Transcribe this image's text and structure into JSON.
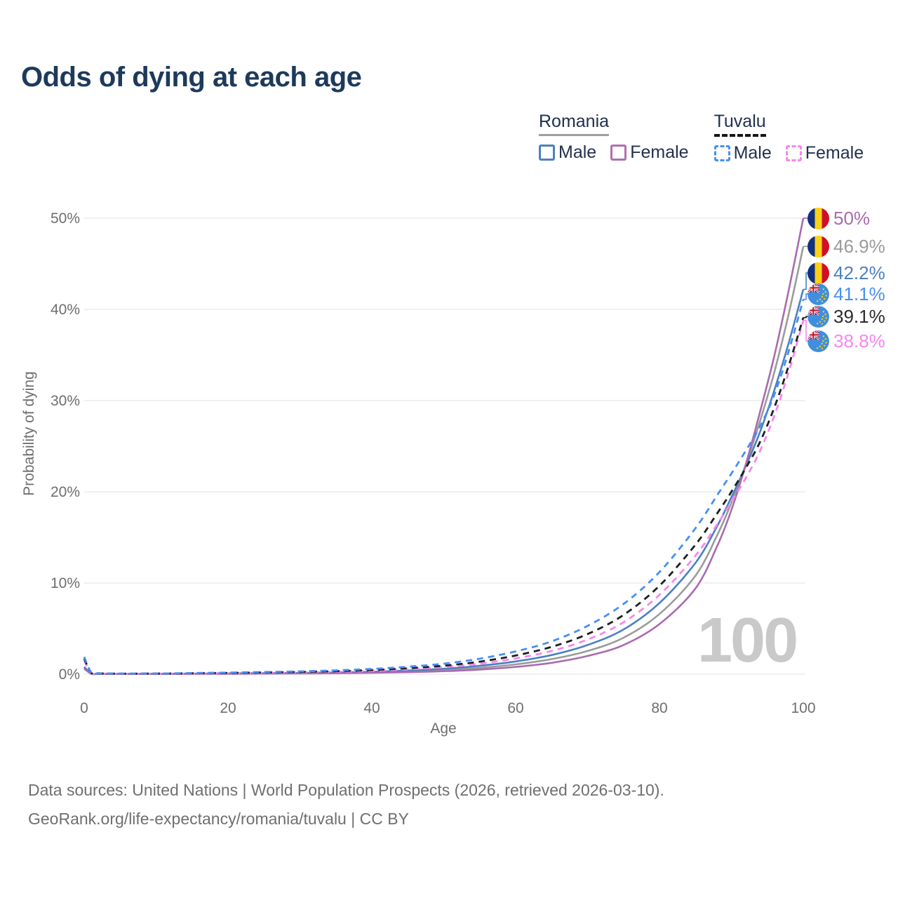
{
  "title": "Odds of dying at each age",
  "watermark": "100",
  "legend": {
    "groups": [
      {
        "name": "Romania",
        "line_style": "solid",
        "underline_color": "#9e9e9e",
        "items": [
          {
            "label": "Male",
            "color": "#4b80c2",
            "dash": false
          },
          {
            "label": "Female",
            "color": "#b06fb2",
            "dash": false
          }
        ]
      },
      {
        "name": "Tuvalu",
        "line_style": "dashed",
        "underline_color": "#161616",
        "items": [
          {
            "label": "Male",
            "color": "#478ff5",
            "dash": true
          },
          {
            "label": "Female",
            "color": "#f985ef",
            "dash": true
          }
        ]
      }
    ]
  },
  "chart_data": {
    "type": "line",
    "title": "Odds of dying at each age",
    "xlabel": "Age",
    "ylabel": "Probability of dying",
    "xlim": [
      0,
      100
    ],
    "ylim_percent": [
      0,
      50
    ],
    "x_ticks": [
      0,
      20,
      40,
      60,
      80,
      100
    ],
    "y_ticks": [
      {
        "value": 0,
        "label": "0%"
      },
      {
        "value": 10,
        "label": "10%"
      },
      {
        "value": 20,
        "label": "20%"
      },
      {
        "value": 30,
        "label": "30%"
      },
      {
        "value": 40,
        "label": "40%"
      },
      {
        "value": 50,
        "label": "50%"
      }
    ],
    "grid": "horizontal",
    "legend_position": "top-right",
    "ages": [
      0,
      1,
      2,
      5,
      10,
      15,
      20,
      25,
      30,
      35,
      40,
      45,
      50,
      55,
      60,
      65,
      70,
      75,
      80,
      85,
      88,
      90,
      92,
      94,
      96,
      98,
      100
    ],
    "series": [
      {
        "id": "romania-female",
        "name": "Romania Female",
        "country": "romania",
        "sex": "Female",
        "color": "#a96bb0",
        "dash": false,
        "end_label": "50%",
        "end_value": 50,
        "values": [
          0.6,
          0.05,
          0.03,
          0.02,
          0.03,
          0.04,
          0.05,
          0.06,
          0.08,
          0.11,
          0.15,
          0.22,
          0.33,
          0.51,
          0.8,
          1.25,
          2.0,
          3.2,
          5.5,
          9.4,
          14.0,
          18.0,
          23.0,
          28.8,
          35.0,
          42.2,
          50.0
        ]
      },
      {
        "id": "romania-total",
        "name": "Romania Both sexes",
        "country": "romania",
        "sex": "Both",
        "color": "#9b9b9b",
        "dash": false,
        "end_label": "46.9%",
        "end_value": 46.9,
        "values": [
          0.7,
          0.06,
          0.04,
          0.03,
          0.03,
          0.05,
          0.07,
          0.09,
          0.11,
          0.15,
          0.2,
          0.3,
          0.46,
          0.7,
          1.08,
          1.65,
          2.55,
          4.0,
          6.6,
          10.8,
          15.2,
          18.8,
          23.0,
          27.8,
          33.2,
          39.6,
          46.9
        ]
      },
      {
        "id": "romania-male",
        "name": "Romania Male",
        "country": "romania",
        "sex": "Male",
        "color": "#4b80c2",
        "dash": false,
        "end_label": "42.2%",
        "end_value": 42.2,
        "values": [
          0.8,
          0.07,
          0.04,
          0.03,
          0.04,
          0.06,
          0.09,
          0.11,
          0.14,
          0.19,
          0.26,
          0.4,
          0.6,
          0.92,
          1.4,
          2.1,
          3.2,
          4.9,
          7.8,
          12.2,
          16.2,
          19.4,
          22.8,
          26.6,
          31.2,
          36.4,
          42.2
        ]
      },
      {
        "id": "tuvalu-male",
        "name": "Tuvalu Male",
        "country": "tuvalu",
        "sex": "Male",
        "color": "#478ff5",
        "dash": true,
        "end_label": "41.1%",
        "end_value": 41.1,
        "values": [
          1.9,
          0.16,
          0.1,
          0.07,
          0.08,
          0.12,
          0.18,
          0.24,
          0.31,
          0.42,
          0.58,
          0.82,
          1.15,
          1.7,
          2.5,
          3.6,
          5.3,
          7.7,
          11.2,
          16.0,
          19.6,
          22.0,
          24.5,
          27.2,
          30.7,
          35.5,
          41.1
        ]
      },
      {
        "id": "tuvalu-total",
        "name": "Tuvalu Both sexes",
        "country": "tuvalu",
        "sex": "Both",
        "color": "#1f1f1f",
        "dash": true,
        "end_label": "39.1%",
        "end_value": 39.1,
        "values": [
          1.7,
          0.14,
          0.09,
          0.06,
          0.07,
          0.1,
          0.14,
          0.19,
          0.25,
          0.33,
          0.46,
          0.65,
          0.93,
          1.38,
          2.05,
          3.0,
          4.4,
          6.5,
          9.7,
          14.2,
          17.6,
          20.0,
          22.6,
          25.5,
          29.3,
          33.9,
          39.1
        ]
      },
      {
        "id": "tuvalu-female",
        "name": "Tuvalu Female",
        "country": "tuvalu",
        "sex": "Female",
        "color": "#f985ef",
        "dash": true,
        "end_label": "38.8%",
        "end_value": 38.8,
        "values": [
          1.5,
          0.12,
          0.08,
          0.05,
          0.06,
          0.08,
          0.11,
          0.15,
          0.2,
          0.27,
          0.37,
          0.53,
          0.77,
          1.15,
          1.73,
          2.55,
          3.8,
          5.7,
          8.7,
          13.0,
          16.4,
          18.9,
          21.5,
          24.5,
          28.4,
          33.2,
          38.8
        ]
      }
    ],
    "flag_colors": {
      "romania": [
        "#14317f",
        "#fcd116",
        "#ce1126"
      ],
      "tuvalu_base": "#3f8ee0",
      "tuvalu_star": "#ffd100",
      "union_jack": [
        "#1a2f7a",
        "#ffffff",
        "#c8102e"
      ]
    }
  },
  "footer": {
    "line1": "Data sources: United Nations | World Population Prospects (2026, retrieved 2026-03-10).",
    "line2": "GeoRank.org/life-expectancy/romania/tuvalu | CC BY"
  }
}
